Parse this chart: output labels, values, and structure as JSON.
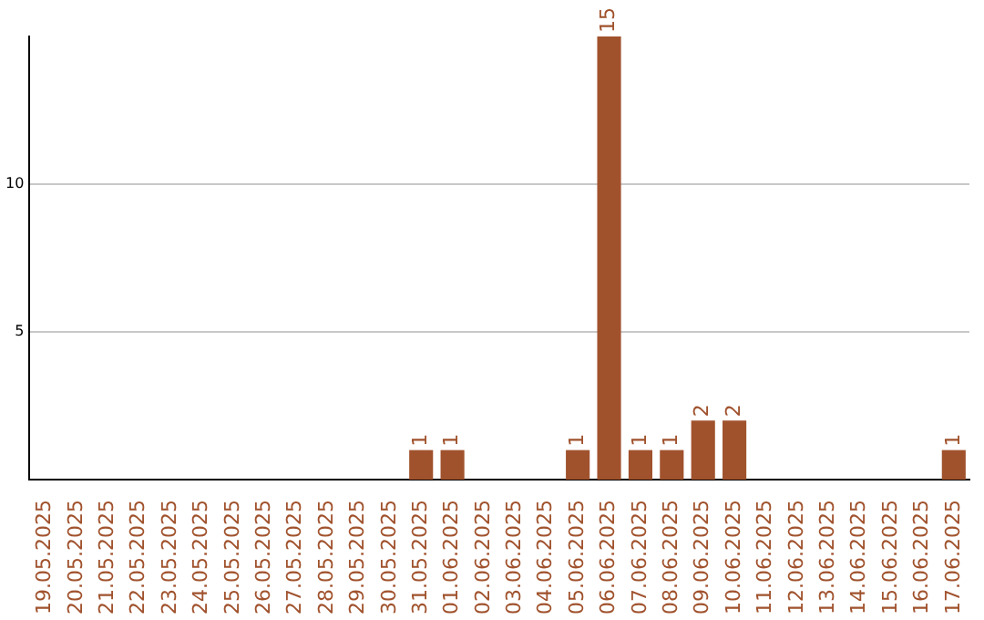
{
  "chart_data": {
    "type": "bar",
    "categories": [
      "19.05.2025",
      "20.05.2025",
      "21.05.2025",
      "22.05.2025",
      "23.05.2025",
      "24.05.2025",
      "25.05.2025",
      "26.05.2025",
      "27.05.2025",
      "28.05.2025",
      "29.05.2025",
      "30.05.2025",
      "31.05.2025",
      "01.06.2025",
      "02.06.2025",
      "03.06.2025",
      "04.06.2025",
      "05.06.2025",
      "06.06.2025",
      "07.06.2025",
      "08.06.2025",
      "09.06.2025",
      "10.06.2025",
      "11.06.2025",
      "12.06.2025",
      "13.06.2025",
      "14.06.2025",
      "15.06.2025",
      "16.06.2025",
      "17.06.2025"
    ],
    "values": [
      0,
      0,
      0,
      0,
      0,
      0,
      0,
      0,
      0,
      0,
      0,
      0,
      1,
      1,
      0,
      0,
      0,
      1,
      15,
      1,
      1,
      2,
      2,
      0,
      0,
      0,
      0,
      0,
      0,
      1
    ],
    "value_labels": [
      null,
      null,
      null,
      null,
      null,
      null,
      null,
      null,
      null,
      null,
      null,
      null,
      "1",
      "1",
      null,
      null,
      null,
      "1",
      "15",
      "1",
      "1",
      "2",
      "2",
      null,
      null,
      null,
      null,
      null,
      null,
      "1"
    ],
    "color": "#a0522d",
    "ylim": [
      0,
      15
    ],
    "yticks": [
      5,
      10
    ],
    "grid": "y",
    "legend": false
  }
}
